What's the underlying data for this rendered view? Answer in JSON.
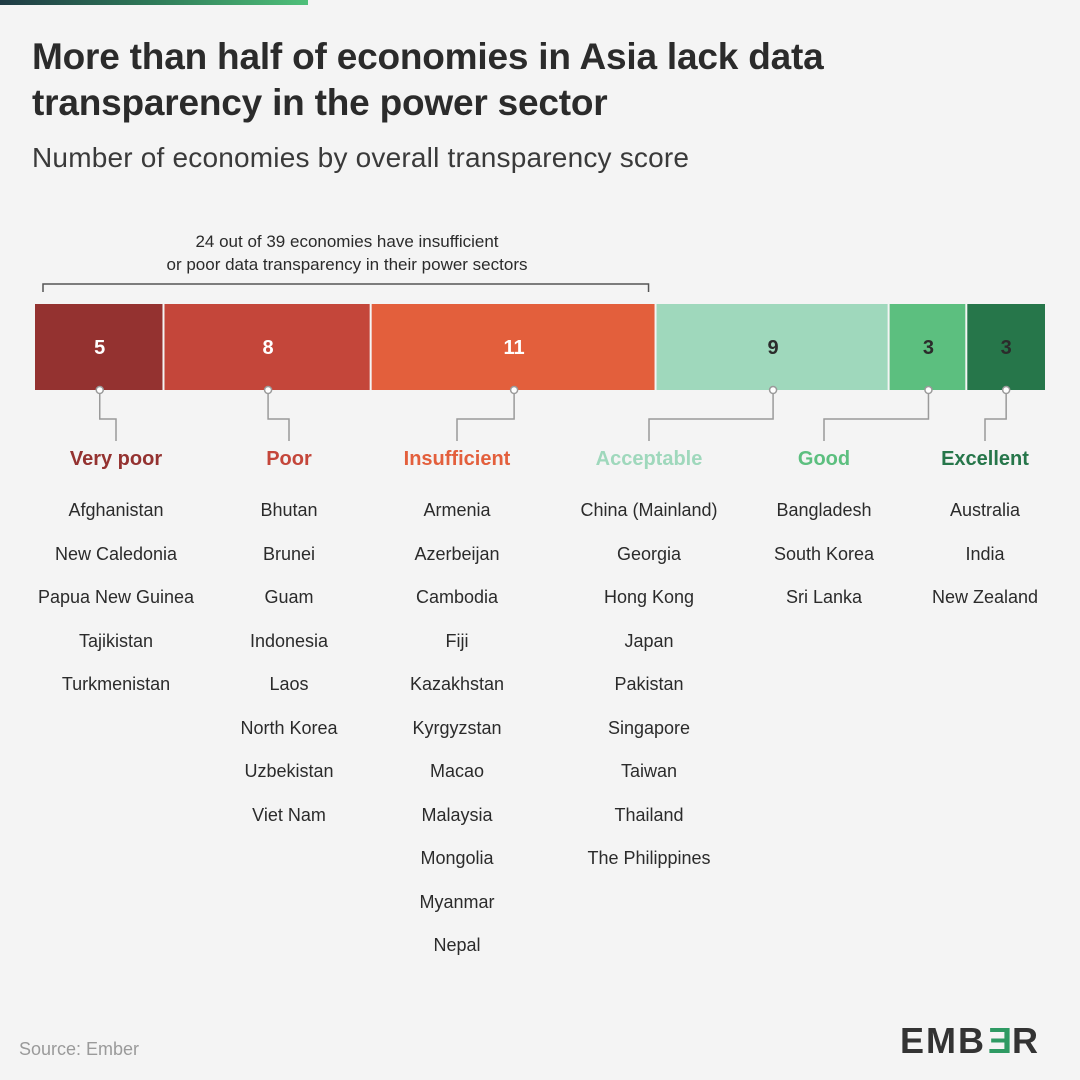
{
  "title": "More than half of economies in Asia lack data transparency in the power sector",
  "subtitle": "Number of economies by overall transparency score",
  "annotation": {
    "line1": "24 out of 39 economies have insufficient",
    "line2": "or poor data transparency in their power sectors"
  },
  "source": "Source: Ember",
  "logo": {
    "pre": "EMB",
    "mid": "E",
    "post": "R"
  },
  "colors": {
    "very_poor": "#943230",
    "poor": "#c4463a",
    "insufficient": "#e35f3c",
    "acceptable": "#9fd8bc",
    "good": "#5cbf7f",
    "excellent": "#26764a"
  },
  "chart_data": {
    "type": "bar",
    "orientation": "horizontal-stacked",
    "title": "More than half of economies in Asia lack data transparency in the power sector",
    "subtitle": "Number of economies by overall transparency score",
    "total": 39,
    "categories": [
      "Very poor",
      "Poor",
      "Insufficient",
      "Acceptable",
      "Good",
      "Excellent"
    ],
    "values": [
      5,
      8,
      11,
      9,
      3,
      3
    ],
    "series": [
      {
        "name": "Very poor",
        "value": 5,
        "color": "#943230",
        "label_color": "#943230",
        "text_color": "#ffffff",
        "countries": [
          "Afghanistan",
          "New Caledonia",
          "Papua New Guinea",
          "Tajikistan",
          "Turkmenistan"
        ]
      },
      {
        "name": "Poor",
        "value": 8,
        "color": "#c4463a",
        "label_color": "#c4463a",
        "text_color": "#ffffff",
        "countries": [
          "Bhutan",
          "Brunei",
          "Guam",
          "Indonesia",
          "Laos",
          "North Korea",
          "Uzbekistan",
          "Viet Nam"
        ]
      },
      {
        "name": "Insufficient",
        "value": 11,
        "color": "#e35f3c",
        "label_color": "#e35f3c",
        "text_color": "#ffffff",
        "countries": [
          "Armenia",
          "Azerbeijan",
          "Cambodia",
          "Fiji",
          "Kazakhstan",
          "Kyrgyzstan",
          "Macao",
          "Malaysia",
          "Mongolia",
          "Myanmar",
          "Nepal"
        ]
      },
      {
        "name": "Acceptable",
        "value": 9,
        "color": "#9fd8bc",
        "label_color": "#9fd8bc",
        "text_color": "#2b2b2b",
        "countries": [
          "China (Mainland)",
          "Georgia",
          "Hong Kong",
          "Japan",
          "Pakistan",
          "Singapore",
          "Taiwan",
          "Thailand",
          "The Philippines"
        ]
      },
      {
        "name": "Good",
        "value": 3,
        "color": "#5cbf7f",
        "label_color": "#5cbf7f",
        "text_color": "#2b2b2b",
        "countries": [
          "Bangladesh",
          "South Korea",
          "Sri Lanka"
        ]
      },
      {
        "name": "Excellent",
        "value": 3,
        "color": "#26764a",
        "label_color": "#26764a",
        "text_color": "#2b2b2b",
        "countries": [
          "Australia",
          "India",
          "New Zealand"
        ]
      }
    ],
    "bracket": {
      "from_category": "Very poor",
      "to_category": "Insufficient",
      "count": 24
    }
  }
}
